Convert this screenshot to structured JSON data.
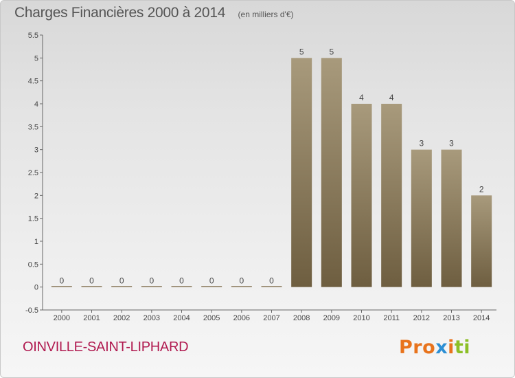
{
  "header": {
    "title": "Charges Financières 2000 à 2014",
    "subtitle": "(en milliers d'€)"
  },
  "footer": {
    "commune": "OINVILLE-SAINT-LIPHARD",
    "logo": "Proxiti"
  },
  "colors": {
    "bar_top": "#a89a7c",
    "bar_bottom": "#6e5e40",
    "commune": "#b0194f",
    "logo_letters": [
      "#e8731c",
      "#e8731c",
      "#e8731c",
      "#2d8fd4",
      "#e8731c",
      "#8cbf26",
      "#8cbf26"
    ]
  },
  "chart_data": {
    "type": "bar",
    "title": "Charges Financières 2000 à 2014",
    "subtitle": "(en milliers d'€)",
    "categories": [
      "2000",
      "2001",
      "2002",
      "2003",
      "2004",
      "2005",
      "2006",
      "2007",
      "2008",
      "2009",
      "2010",
      "2011",
      "2012",
      "2013",
      "2014"
    ],
    "values": [
      0,
      0,
      0,
      0,
      0,
      0,
      0,
      0,
      5,
      5,
      4,
      4,
      3,
      3,
      2
    ],
    "data_labels": [
      "0",
      "0",
      "0",
      "0",
      "0",
      "0",
      "0",
      "0",
      "5",
      "5",
      "4",
      "4",
      "3",
      "3",
      "2"
    ],
    "ylim": [
      -0.5,
      5.5
    ],
    "yticks": [
      -0.5,
      0,
      0.5,
      1,
      1.5,
      2,
      2.5,
      3,
      3.5,
      4,
      4.5,
      5,
      5.5
    ],
    "ytick_labels": [
      "-0.5",
      "0",
      "0.5",
      "1",
      "1.5",
      "2",
      "2.5",
      "3",
      "3.5",
      "4",
      "4.5",
      "5",
      "5.5"
    ],
    "xlabel": "",
    "ylabel": "",
    "grid": false,
    "legend": "none"
  }
}
